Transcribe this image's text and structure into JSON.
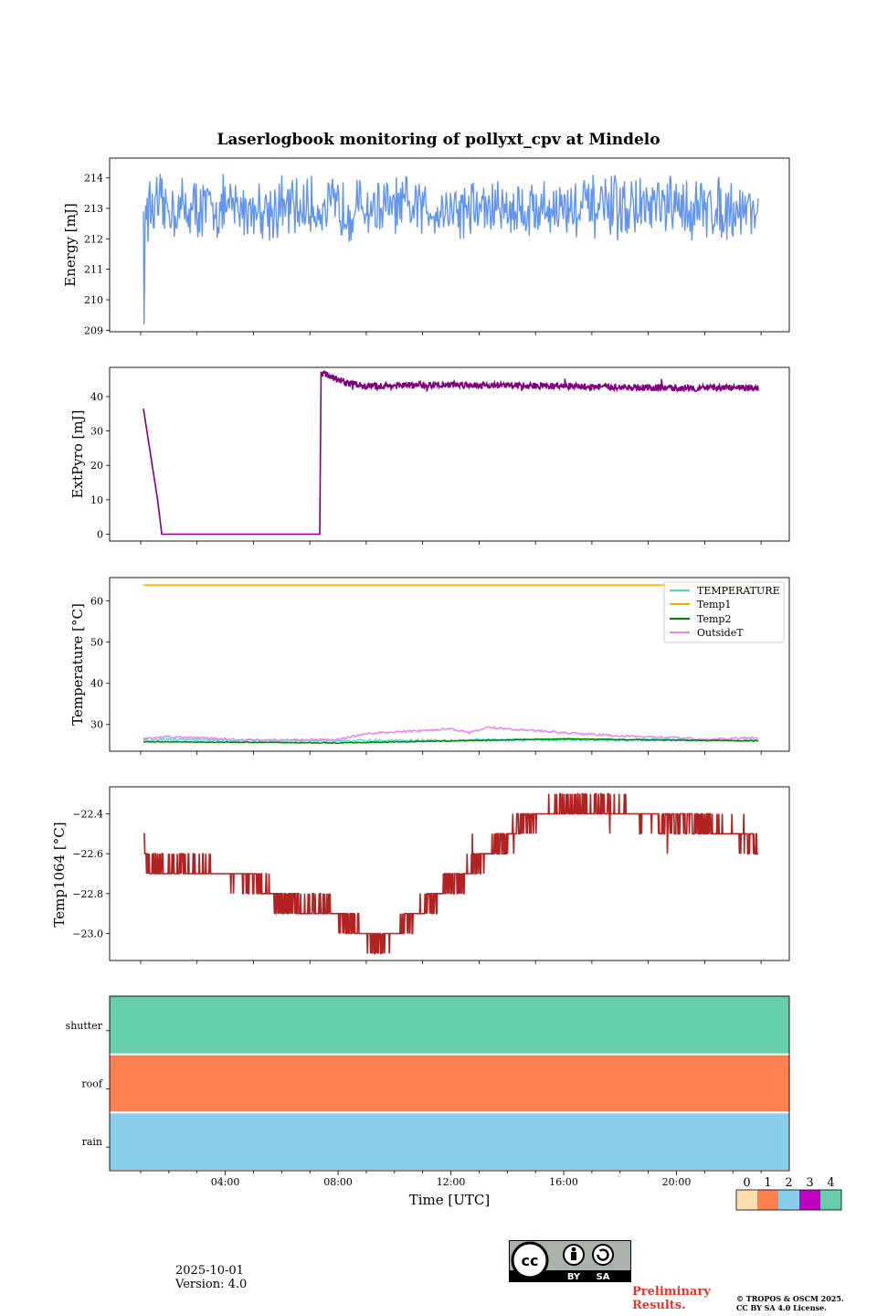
{
  "title": "Laserlogbook monitoring of pollyxt_cpv at Mindelo",
  "footer": {
    "date": "2025-10-01",
    "version": "Version: 4.0",
    "preliminary_line1": "Preliminary",
    "preliminary_line2": "Results.",
    "copyright_line1": "© TROPOS & OSCM 2025.",
    "copyright_line2": "CC BY SA 4.0 License.",
    "cc_badge": {
      "by": "BY",
      "sa": "SA",
      "icon": "creative-commons-icon"
    }
  },
  "colors": {
    "energy": "#6495ed",
    "extpyro": "#800080",
    "temperature": "#40e0d0",
    "temp1": "#ffa500",
    "temp2": "#008000",
    "outsidet": "#ee82ee",
    "temp1064": "#b22222",
    "status_0": "#ffdead",
    "status_1": "#ff7f50",
    "status_2": "#87ceeb",
    "status_3": "#c000c0",
    "status_4": "#66cdaa"
  },
  "chart_data": [
    {
      "type": "line",
      "id": "energy",
      "ylabel": "Energy [mJ]",
      "x_range_hours": [
        -0.1,
        24
      ],
      "ylim": [
        208.95,
        214.65
      ],
      "yticks": [
        "209",
        "210",
        "211",
        "212",
        "213",
        "214"
      ],
      "series": [
        {
          "name": "Energy",
          "start_hours": 1.1,
          "end_hours": 22.9,
          "initial": [
            212.9,
            209.2,
            211.0,
            212.6,
            213.1
          ],
          "typical": 213.0,
          "range": [
            211.9,
            214.4
          ]
        }
      ]
    },
    {
      "type": "line",
      "id": "extpyro",
      "ylabel": "ExtPyro [mJ]",
      "x_range_hours": [
        -0.1,
        24
      ],
      "ylim": [
        -2,
        48.5
      ],
      "yticks": [
        "0",
        "10",
        "20",
        "30",
        "40"
      ],
      "series": [
        {
          "name": "ExtPyro",
          "points": [
            [
              1.1,
              36.5
            ],
            [
              1.6,
              10.0
            ],
            [
              1.75,
              0.0
            ],
            [
              7.35,
              0.0
            ],
            [
              7.4,
              47.0
            ],
            [
              7.7,
              46.0
            ],
            [
              8.3,
              44.0
            ],
            [
              9.0,
              43.0
            ],
            [
              12.0,
              43.5
            ],
            [
              16.0,
              43.0
            ],
            [
              20.0,
              42.5
            ],
            [
              22.9,
              42.5
            ]
          ],
          "noise": 1.0
        }
      ]
    },
    {
      "type": "line",
      "id": "temperature",
      "ylabel": "Temperature [°C]",
      "x_range_hours": [
        -0.1,
        24
      ],
      "ylim": [
        23.5,
        65.7
      ],
      "yticks": [
        "30",
        "40",
        "50",
        "60"
      ],
      "legend": [
        "TEMPERATURE",
        "Temp1",
        "Temp2",
        "OutsideT"
      ],
      "legend_position": "top-right",
      "series": [
        {
          "name": "TEMPERATURE",
          "points": [
            [
              1.1,
              26.3
            ],
            [
              8.0,
              26.0
            ],
            [
              12.0,
              26.2
            ],
            [
              16.0,
              26.3
            ],
            [
              22.9,
              26.2
            ]
          ],
          "noise": 0.3
        },
        {
          "name": "Temp1",
          "points": [
            [
              1.1,
              63.9
            ],
            [
              22.9,
              63.9
            ]
          ],
          "noise": 0
        },
        {
          "name": "Temp2",
          "points": [
            [
              1.1,
              25.8
            ],
            [
              4.0,
              25.7
            ],
            [
              8.0,
              25.5
            ],
            [
              12.0,
              26.0
            ],
            [
              16.0,
              26.5
            ],
            [
              20.0,
              26.2
            ],
            [
              22.9,
              26.0
            ]
          ],
          "noise": 0.1
        },
        {
          "name": "OutsideT",
          "points": [
            [
              1.1,
              26.5
            ],
            [
              2.0,
              27.0
            ],
            [
              5.0,
              26.2
            ],
            [
              8.0,
              26.3
            ],
            [
              9.0,
              27.8
            ],
            [
              11.0,
              28.5
            ],
            [
              12.0,
              29.0
            ],
            [
              12.7,
              28.0
            ],
            [
              13.3,
              29.3
            ],
            [
              15.0,
              28.5
            ],
            [
              16.0,
              28.0
            ],
            [
              18.0,
              27.2
            ],
            [
              20.0,
              26.8
            ],
            [
              21.0,
              26.3
            ],
            [
              22.9,
              26.8
            ]
          ],
          "noise": 0.25
        }
      ]
    },
    {
      "type": "line",
      "id": "temp1064",
      "ylabel": "Temp1064 [°C]",
      "x_range_hours": [
        -0.1,
        24
      ],
      "ylim": [
        -23.135,
        -22.265
      ],
      "yticks": [
        "−23.0",
        "−22.8",
        "−22.6",
        "−22.4"
      ],
      "series": [
        {
          "name": "Temp1064",
          "step": 0.1,
          "points": [
            [
              1.1,
              -22.55
            ],
            [
              1.2,
              -22.65
            ],
            [
              5.0,
              -22.72
            ],
            [
              6.0,
              -22.85
            ],
            [
              7.5,
              -22.88
            ],
            [
              8.5,
              -22.95
            ],
            [
              9.3,
              -23.05
            ],
            [
              10.3,
              -22.97
            ],
            [
              11.5,
              -22.8
            ],
            [
              12.5,
              -22.7
            ],
            [
              13.5,
              -22.58
            ],
            [
              14.5,
              -22.46
            ],
            [
              15.5,
              -22.38
            ],
            [
              17.5,
              -22.37
            ],
            [
              19.0,
              -22.42
            ],
            [
              21.0,
              -22.45
            ],
            [
              22.0,
              -22.5
            ],
            [
              22.9,
              -22.55
            ]
          ]
        }
      ]
    },
    {
      "type": "heatmap",
      "id": "status",
      "rows": [
        "shutter",
        "roof",
        "rain"
      ],
      "row_values": [
        4,
        1,
        2
      ],
      "x_range_hours": [
        -0.1,
        24
      ],
      "xticks": [
        "04:00",
        "08:00",
        "12:00",
        "16:00",
        "20:00"
      ],
      "xtick_hours": [
        4,
        8,
        12,
        16,
        20
      ],
      "xlabel": "Time [UTC]",
      "colorbar": {
        "labels": [
          "0",
          "1",
          "2",
          "3",
          "4"
        ]
      }
    }
  ]
}
